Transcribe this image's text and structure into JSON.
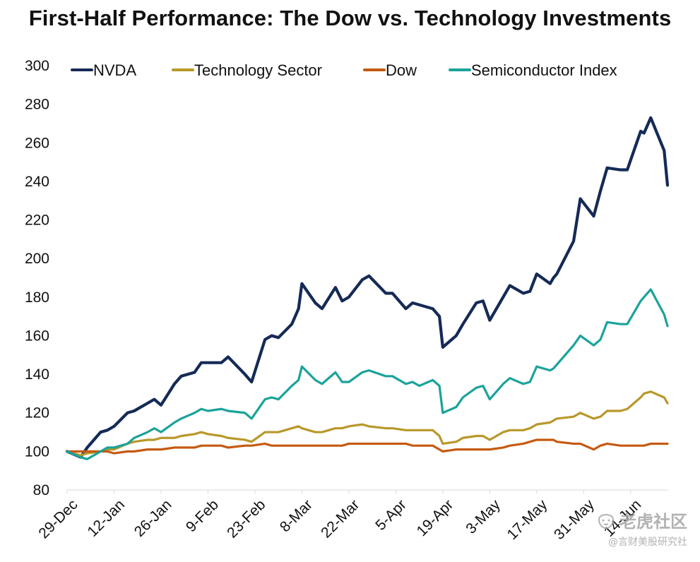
{
  "chart_data": {
    "type": "line",
    "title": "First-Half Performance: The Dow vs. Technology Investments",
    "xlabel": "",
    "ylabel": "",
    "ylim": [
      80,
      300
    ],
    "y_ticks": [
      "80",
      "100",
      "120",
      "140",
      "160",
      "180",
      "200",
      "220",
      "240",
      "260",
      "280",
      "300"
    ],
    "x_tick_labels": [
      "29-Dec",
      "12-Jan",
      "26-Jan",
      "9-Feb",
      "23-Feb",
      "8-Mar",
      "22-Mar",
      "5-Apr",
      "19-Apr",
      "3-May",
      "17-May",
      "31-May",
      "14-Jun"
    ],
    "grid": false,
    "legend_position": "top",
    "x": [
      "2023-12-29",
      "2024-01-02",
      "2024-01-04",
      "2024-01-08",
      "2024-01-10",
      "2024-01-12",
      "2024-01-16",
      "2024-01-18",
      "2024-01-22",
      "2024-01-24",
      "2024-01-26",
      "2024-01-30",
      "2024-02-01",
      "2024-02-05",
      "2024-02-07",
      "2024-02-09",
      "2024-02-13",
      "2024-02-15",
      "2024-02-20",
      "2024-02-22",
      "2024-02-26",
      "2024-02-28",
      "2024-03-01",
      "2024-03-05",
      "2024-03-07",
      "2024-03-08",
      "2024-03-12",
      "2024-03-14",
      "2024-03-18",
      "2024-03-20",
      "2024-03-22",
      "2024-03-26",
      "2024-03-28",
      "2024-04-02",
      "2024-04-04",
      "2024-04-08",
      "2024-04-10",
      "2024-04-12",
      "2024-04-16",
      "2024-04-18",
      "2024-04-19",
      "2024-04-23",
      "2024-04-25",
      "2024-04-29",
      "2024-05-01",
      "2024-05-03",
      "2024-05-07",
      "2024-05-09",
      "2024-05-13",
      "2024-05-15",
      "2024-05-17",
      "2024-05-21",
      "2024-05-22",
      "2024-05-23",
      "2024-05-28",
      "2024-05-30",
      "2024-06-03",
      "2024-06-05",
      "2024-06-07",
      "2024-06-11",
      "2024-06-13",
      "2024-06-17",
      "2024-06-18",
      "2024-06-20",
      "2024-06-24",
      "2024-06-25"
    ],
    "series": [
      {
        "name": "NVDA",
        "color": "#152a56",
        "values": [
          100,
          97,
          102,
          110,
          111,
          113,
          120,
          121,
          125,
          127,
          124,
          135,
          139,
          141,
          146,
          146,
          146,
          149,
          140,
          136,
          158,
          160,
          159,
          166,
          174,
          187,
          177,
          174,
          185,
          178,
          180,
          189,
          191,
          182,
          182,
          174,
          177,
          176,
          174,
          170,
          154,
          160,
          166,
          177,
          178,
          168,
          180,
          186,
          182,
          183,
          192,
          187,
          190,
          192,
          209,
          231,
          222,
          235,
          247,
          246,
          246,
          266,
          265,
          273,
          256,
          238
        ]
      },
      {
        "name": "Technology Sector",
        "color": "#b8982a",
        "values": [
          100,
          98,
          99,
          100,
          101,
          101,
          104,
          105,
          106,
          106,
          107,
          107,
          108,
          109,
          110,
          109,
          108,
          107,
          106,
          105,
          110,
          110,
          110,
          112,
          113,
          112,
          110,
          110,
          112,
          112,
          113,
          114,
          113,
          112,
          112,
          111,
          111,
          111,
          111,
          108,
          104,
          105,
          107,
          108,
          108,
          106,
          110,
          111,
          111,
          112,
          114,
          115,
          116,
          117,
          118,
          120,
          117,
          118,
          121,
          121,
          122,
          128,
          130,
          131,
          128,
          125
        ]
      },
      {
        "name": "Dow",
        "color": "#c55a11",
        "values": [
          100,
          100,
          100,
          100,
          100,
          99,
          100,
          100,
          101,
          101,
          101,
          102,
          102,
          102,
          103,
          103,
          103,
          102,
          103,
          103,
          104,
          103,
          103,
          103,
          103,
          103,
          103,
          103,
          103,
          103,
          104,
          104,
          104,
          104,
          104,
          104,
          103,
          103,
          103,
          101,
          100,
          101,
          101,
          101,
          101,
          101,
          102,
          103,
          104,
          105,
          106,
          106,
          106,
          105,
          104,
          104,
          101,
          103,
          104,
          103,
          103,
          103,
          103,
          104,
          104,
          104
        ]
      },
      {
        "name": "Semiconductor Index",
        "color": "#1aa39a",
        "values": [
          100,
          97,
          96,
          100,
          102,
          102,
          104,
          107,
          110,
          112,
          110,
          115,
          117,
          120,
          122,
          121,
          122,
          121,
          120,
          117,
          127,
          128,
          127,
          134,
          137,
          144,
          137,
          135,
          141,
          136,
          136,
          141,
          142,
          139,
          139,
          135,
          136,
          134,
          137,
          134,
          120,
          123,
          128,
          133,
          134,
          127,
          135,
          138,
          135,
          136,
          144,
          142,
          143,
          145,
          155,
          160,
          155,
          158,
          167,
          166,
          166,
          178,
          180,
          184,
          171,
          165
        ]
      }
    ],
    "watermark": {
      "top": "老虎社区",
      "bottom": "@言财美股研究社"
    }
  }
}
